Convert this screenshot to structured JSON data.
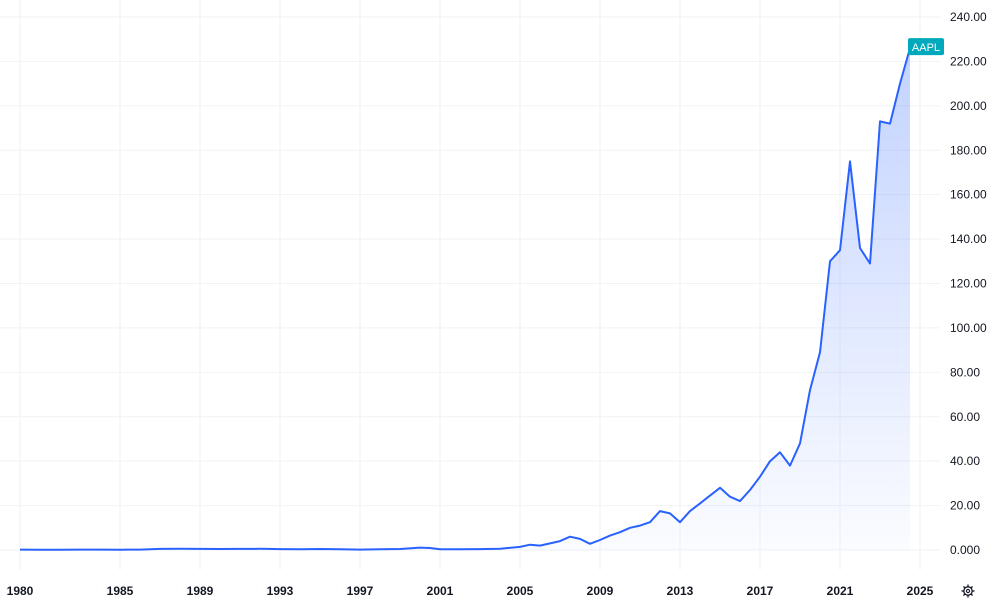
{
  "chart_data": {
    "type": "area",
    "series": [
      {
        "name": "AAPL",
        "color": "#2962ff",
        "x": [
          1980.0,
          1981.0,
          1982.0,
          1983.0,
          1984.0,
          1985.0,
          1986.0,
          1987.0,
          1988.0,
          1989.0,
          1990.0,
          1991.0,
          1992.0,
          1993.0,
          1994.0,
          1995.0,
          1996.0,
          1997.0,
          1998.0,
          1999.0,
          2000.0,
          2000.5,
          2001.0,
          2002.0,
          2003.0,
          2004.0,
          2005.0,
          2005.5,
          2006.0,
          2007.0,
          2007.5,
          2008.0,
          2008.5,
          2009.0,
          2009.5,
          2010.0,
          2010.5,
          2011.0,
          2011.5,
          2012.0,
          2012.5,
          2013.0,
          2013.5,
          2014.0,
          2014.5,
          2015.0,
          2015.5,
          2016.0,
          2016.5,
          2017.0,
          2017.5,
          2018.0,
          2018.5,
          2019.0,
          2019.5,
          2020.0,
          2020.5,
          2021.0,
          2021.5,
          2022.0,
          2022.5,
          2023.0,
          2023.5,
          2024.0,
          2024.5
        ],
        "values": [
          0.2,
          0.15,
          0.1,
          0.2,
          0.2,
          0.15,
          0.2,
          0.5,
          0.6,
          0.5,
          0.45,
          0.5,
          0.55,
          0.4,
          0.35,
          0.45,
          0.3,
          0.2,
          0.3,
          0.45,
          1.1,
          0.9,
          0.35,
          0.3,
          0.4,
          0.6,
          1.4,
          2.4,
          2.0,
          4.0,
          6.0,
          5.0,
          2.8,
          4.5,
          6.5,
          8.0,
          10.0,
          11.0,
          12.5,
          17.5,
          16.5,
          12.5,
          17.5,
          21.0,
          24.5,
          28.0,
          24.0,
          22.0,
          27.0,
          33.0,
          40.0,
          44.0,
          38.0,
          48.0,
          72.0,
          89.0,
          130.0,
          135.0,
          175.0,
          136.0,
          129.0,
          193.0,
          192.0,
          210.0,
          226.0
        ]
      }
    ],
    "xlim": [
      1980,
      2025
    ],
    "ylim": [
      0,
      240
    ],
    "x_ticks": [
      "1980",
      "1985",
      "1989",
      "1993",
      "1997",
      "2001",
      "2005",
      "2009",
      "2013",
      "2017",
      "2021",
      "2025"
    ],
    "y_ticks": [
      "0.000",
      "20.00",
      "40.00",
      "60.00",
      "80.00",
      "100.00",
      "120.00",
      "140.00",
      "160.00",
      "180.00",
      "200.00",
      "220.00",
      "240.00"
    ],
    "last_label": "AAPL",
    "label_color": "#00a9bb",
    "fill_color": "#2962ff",
    "grid": true,
    "y_axis_position": "right"
  },
  "toolbar": {
    "settings_icon": "gear-icon"
  }
}
